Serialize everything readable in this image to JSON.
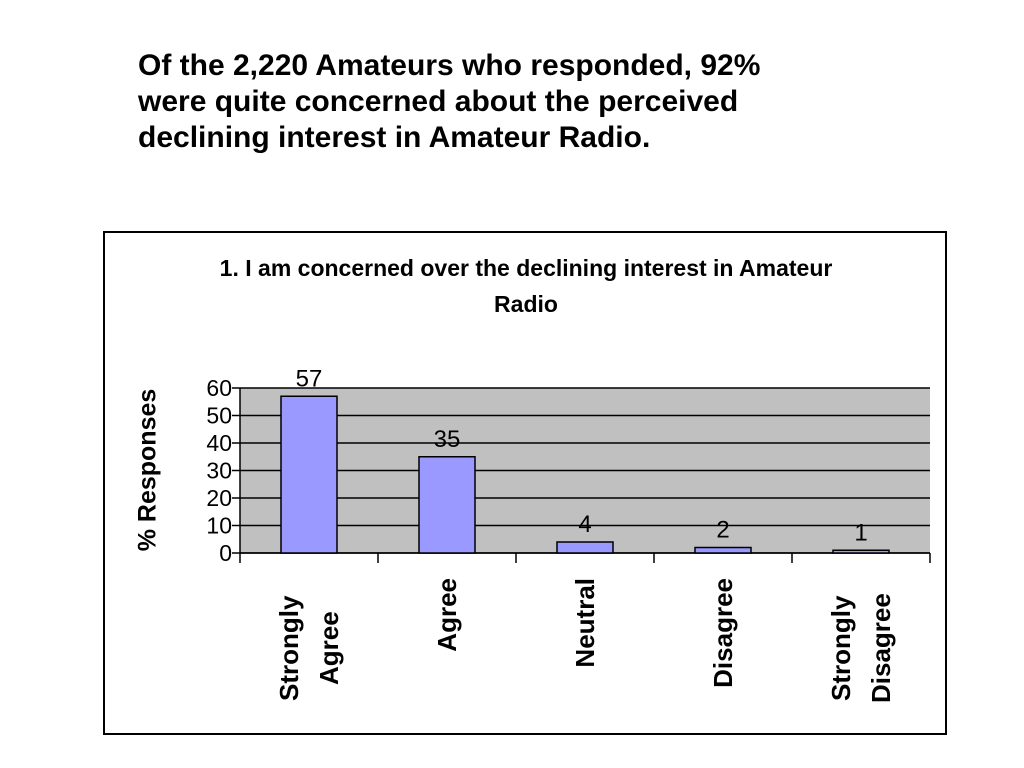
{
  "heading": "Of the 2,220 Amateurs who responded, 92% were quite concerned about the perceived declining interest in Amateur Radio.",
  "chart_data": {
    "type": "bar",
    "title": "1. I am concerned over the declining interest in Amateur Radio",
    "y_label": "% Responses",
    "categories": [
      "Strongly Agree",
      "Agree",
      "Neutral",
      "Disagree",
      "Strongly Disagree"
    ],
    "values": [
      57,
      35,
      4,
      2,
      1
    ],
    "color": "#9999ff",
    "ylim": [
      0,
      60
    ],
    "yticks": [
      0,
      10,
      20,
      30,
      40,
      50,
      60
    ],
    "grid": true
  }
}
